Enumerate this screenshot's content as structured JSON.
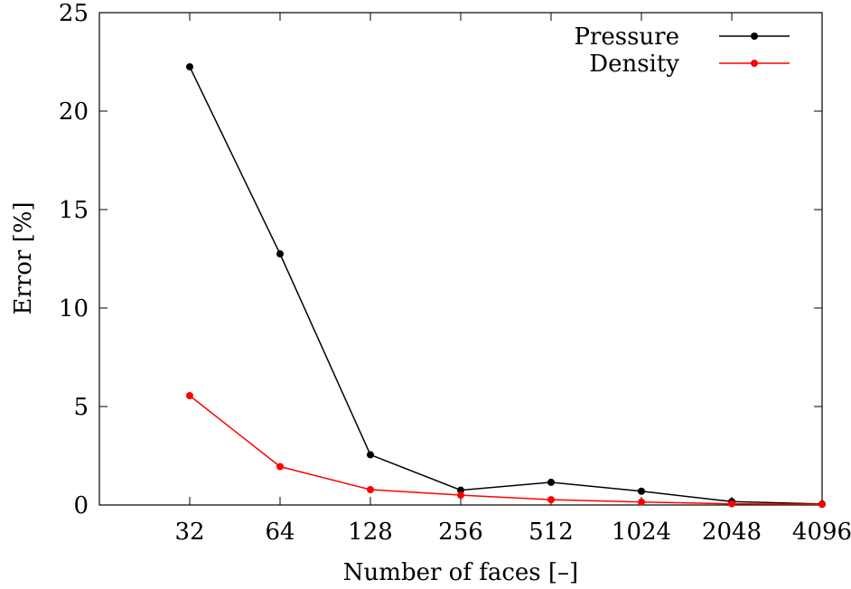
{
  "chart_data": {
    "type": "line",
    "xlabel": "Number of faces [–]",
    "ylabel": "Error [%]",
    "categories": [
      "32",
      "64",
      "128",
      "256",
      "512",
      "1024",
      "2048",
      "4096"
    ],
    "x": [
      32,
      64,
      128,
      256,
      512,
      1024,
      2048,
      4096
    ],
    "x_scale": "log2",
    "xlim": [
      16,
      4096
    ],
    "ylim": [
      0,
      25
    ],
    "yticks": [
      0,
      5,
      10,
      15,
      20,
      25
    ],
    "grid": false,
    "legend_position": "top-right",
    "series": [
      {
        "name": "Pressure",
        "color": "#000000",
        "values": [
          22.25,
          12.75,
          2.55,
          0.75,
          1.15,
          0.7,
          0.17,
          0.05
        ]
      },
      {
        "name": "Density",
        "color": "#ff0000",
        "values": [
          5.55,
          1.95,
          0.78,
          0.5,
          0.27,
          0.15,
          0.06,
          0.03
        ]
      }
    ]
  }
}
